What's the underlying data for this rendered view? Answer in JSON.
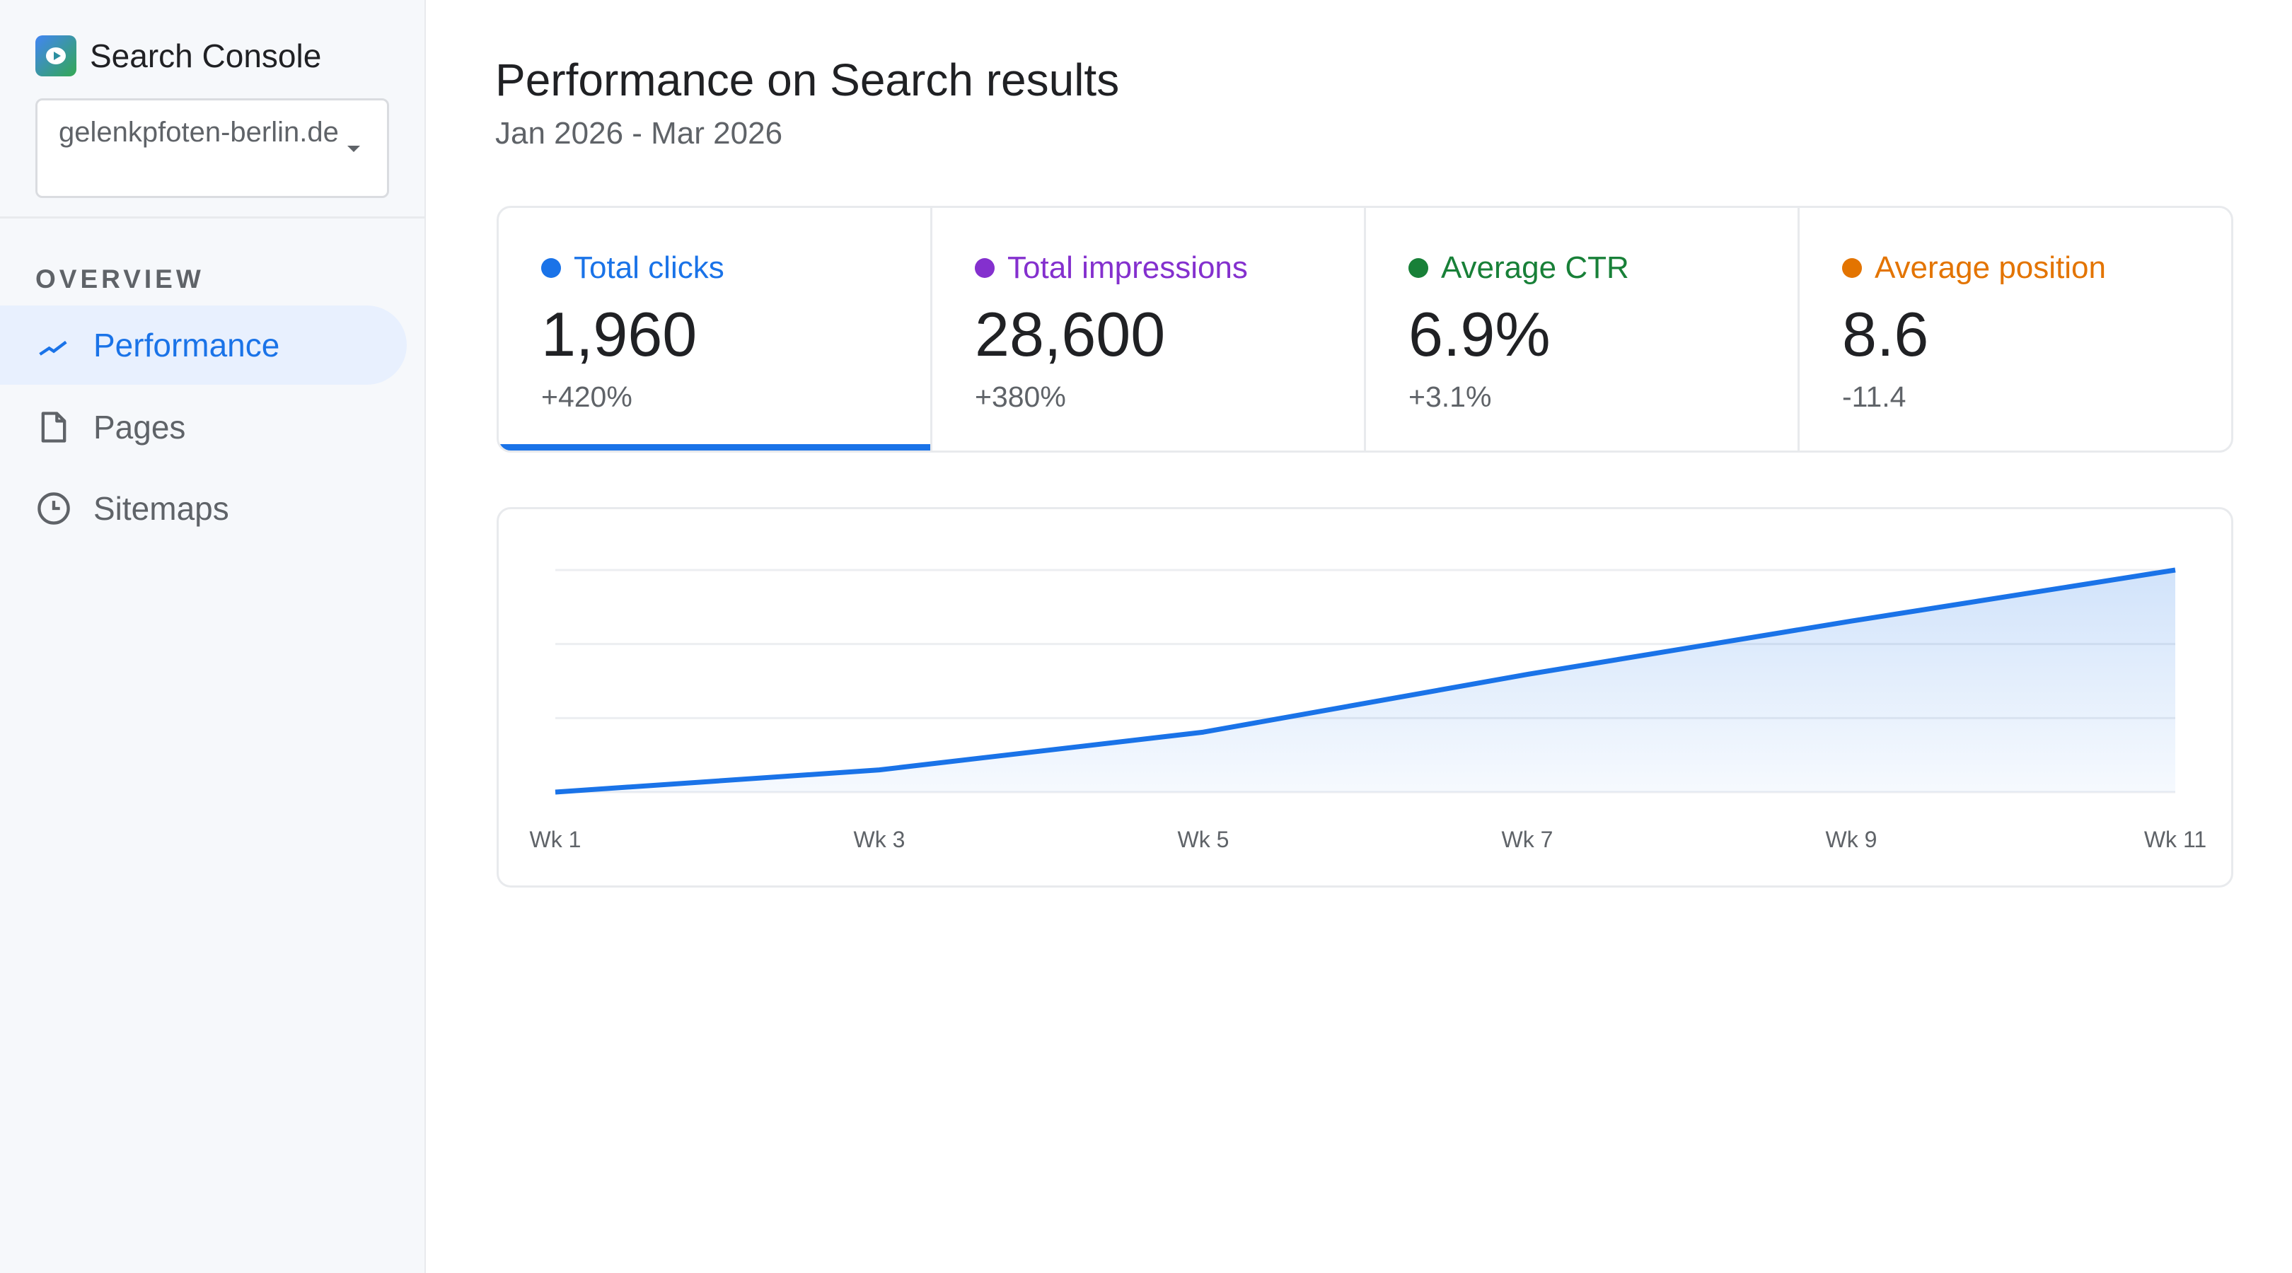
{
  "app": {
    "title": "Search Console",
    "property": "gelenkpfoten-berlin.de"
  },
  "sidebar": {
    "section": "OVERVIEW",
    "items": [
      {
        "label": "Performance",
        "icon": "trending-icon",
        "active": true
      },
      {
        "label": "Pages",
        "icon": "page-icon"
      },
      {
        "label": "Sitemaps",
        "icon": "clock-icon"
      }
    ]
  },
  "main": {
    "title": "Performance on Search results",
    "date_range": "Jan 2026 - Mar 2026",
    "metrics": [
      {
        "label": "Total clicks",
        "value": "1,960",
        "delta": "+420%",
        "color": "#1a73e8",
        "active": true
      },
      {
        "label": "Total impressions",
        "value": "28,600",
        "delta": "+380%",
        "color": "#8430ce"
      },
      {
        "label": "Average CTR",
        "value": "6.9%",
        "delta": "+3.1%",
        "color": "#188038"
      },
      {
        "label": "Average position",
        "value": "8.6",
        "delta": "-11.4",
        "color": "#e37400"
      }
    ]
  },
  "chart_data": {
    "type": "area",
    "categories": [
      "Wk 1",
      "Wk 3",
      "Wk 5",
      "Wk 7",
      "Wk 9",
      "Wk 11"
    ],
    "values": [
      0,
      0.1,
      0.27,
      0.53,
      0.77,
      1.0
    ],
    "ylim": [
      0,
      1
    ],
    "grid": true,
    "color": "#1a73e8"
  }
}
